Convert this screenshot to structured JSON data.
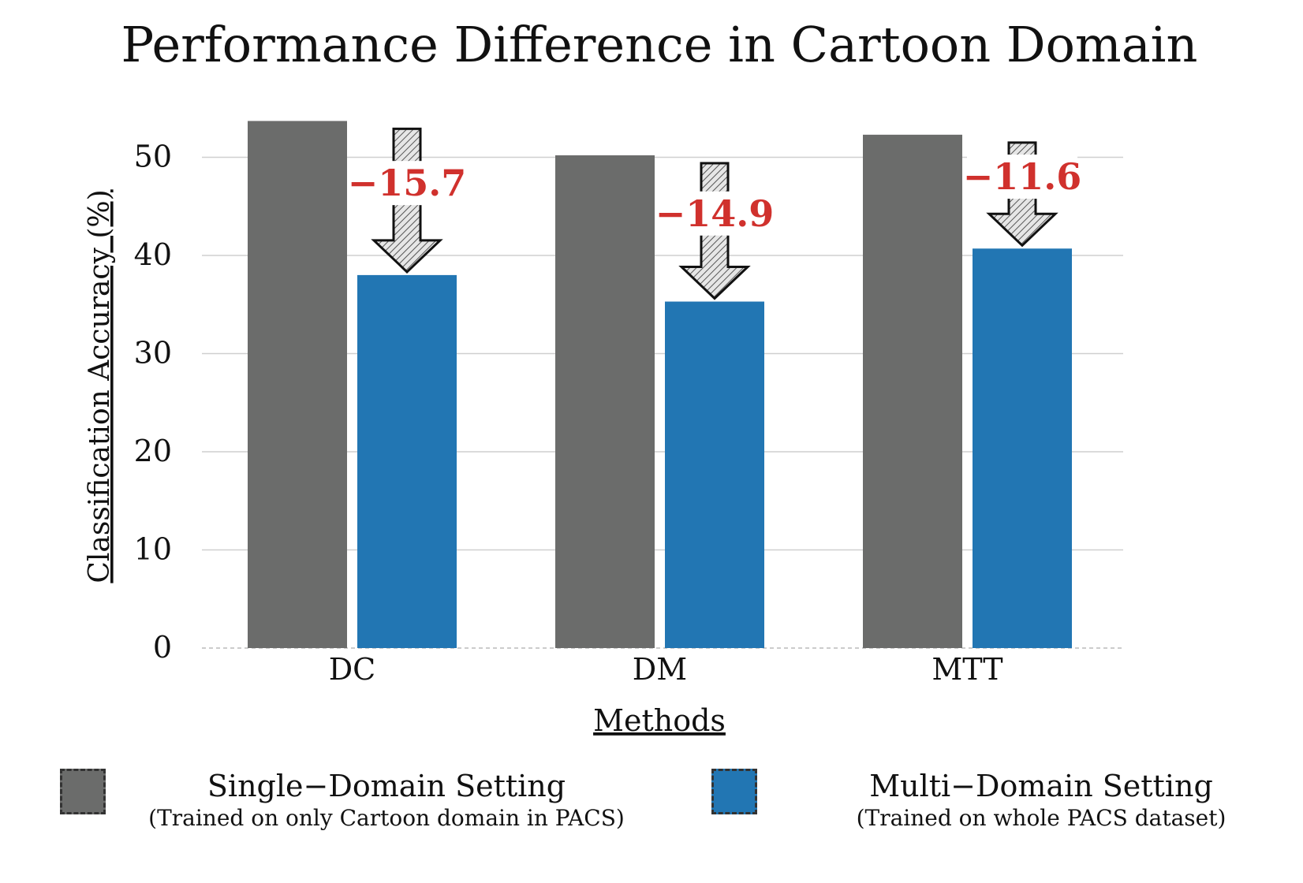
{
  "chart_data": {
    "type": "bar",
    "title": "Performance Difference in Cartoon Domain",
    "xlabel": "Methods",
    "ylabel": "Classification Accuracy (%)",
    "categories": [
      "DC",
      "DM",
      "MTT"
    ],
    "ylim": [
      0,
      55
    ],
    "yticks": [
      0,
      10,
      20,
      30,
      40,
      50
    ],
    "grid": true,
    "series": [
      {
        "name": "Single−Domain Setting",
        "color": "#6b6c6b",
        "values": [
          53.7,
          50.2,
          52.3
        ]
      },
      {
        "name": "Multi−Domain Setting",
        "color": "#2276b3",
        "values": [
          38.0,
          35.3,
          40.7
        ]
      }
    ],
    "annotations": [
      "−15.7",
      "−14.9",
      "−11.6"
    ],
    "annotation_color": "#d0312d",
    "legend_position": "bottom"
  },
  "legend": [
    {
      "label": "Single−Domain Setting",
      "sublabel": "(Trained on only Cartoon domain in PACS)"
    },
    {
      "label": "Multi−Domain Setting",
      "sublabel": "(Trained on whole PACS dataset)"
    }
  ]
}
